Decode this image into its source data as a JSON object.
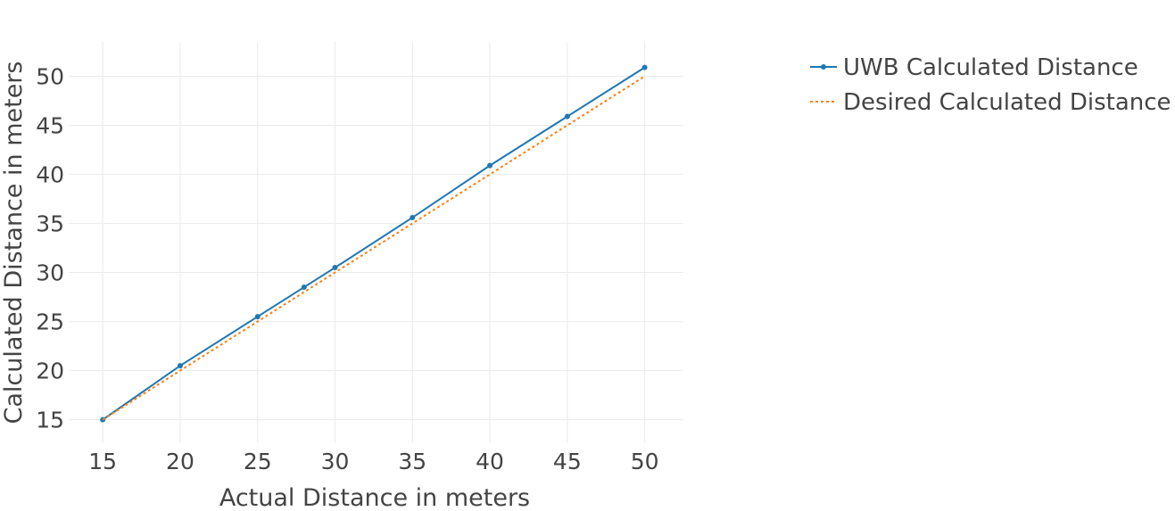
{
  "chart_data": {
    "type": "line",
    "title": "",
    "xlabel": "Actual Distance in meters",
    "ylabel": "Calculated Distance in meters",
    "xlim": [
      12.8,
      52.5
    ],
    "ylim": [
      12.6,
      53.5
    ],
    "x_ticks": [
      15,
      20,
      25,
      30,
      35,
      40,
      45,
      50
    ],
    "y_ticks": [
      15,
      20,
      25,
      30,
      35,
      40,
      45,
      50
    ],
    "grid": true,
    "legend_position": "right",
    "series": [
      {
        "name": "UWB Calculated Distance",
        "color": "#1f77b4",
        "line_style": "solid",
        "markers": true,
        "x": [
          15,
          20,
          25,
          28,
          30,
          35,
          40,
          45,
          50
        ],
        "y": [
          15,
          20.5,
          25.5,
          28.5,
          30.5,
          35.6,
          40.9,
          45.9,
          50.9
        ]
      },
      {
        "name": "Desired Calculated Distance",
        "color": "#ff7f0e",
        "line_style": "dotted",
        "markers": false,
        "x": [
          15,
          50
        ],
        "y": [
          15,
          50
        ]
      }
    ]
  }
}
